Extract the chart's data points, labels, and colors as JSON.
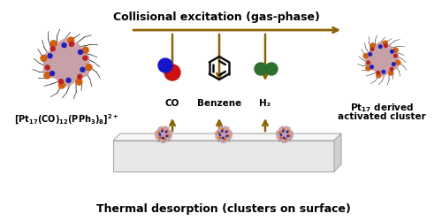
{
  "bg_color": "#ffffff",
  "arrow_color": "#8B6508",
  "title_top": "Collisional excitation (gas-phase)",
  "title_bottom": "Thermal desorption (clusters on surface)",
  "label_left_1": "[Pt",
  "label_left_sub1": "17",
  "label_left_2": "(CO)",
  "label_left_sub2": "12",
  "label_left_3": "(PPh",
  "label_left_sub3": "3",
  "label_left_4": ")",
  "label_left_sub4": "8",
  "label_left_5": "]",
  "label_left_sup": "2+",
  "label_right_line1": "Pt",
  "label_right_sub": "17",
  "label_right_line1b": " derived",
  "label_right_line2": "activated cluster",
  "labels_mid": [
    "CO",
    "Benzene",
    "H₂"
  ],
  "mol_co_red": "#cc1111",
  "mol_co_blue": "#1515cc",
  "mol_h2_green": "#2d6e2d",
  "mol_benzene_dark": "#111111",
  "cluster_pink": "#c8a0a8",
  "cluster_pink2": "#d8b0b8",
  "cluster_orange": "#d06010",
  "cluster_dark": "#444444",
  "surface_top_color": "#f0f0f0",
  "surface_side_color": "#d8d8d8",
  "surface_edge": "#aaaaaa",
  "figsize": [
    5.0,
    2.51
  ],
  "dpi": 100
}
